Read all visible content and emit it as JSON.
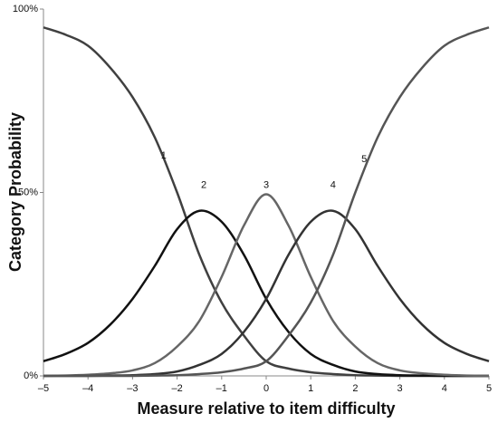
{
  "chart_data": {
    "type": "line",
    "x_label": "Measure relative to item difficulty",
    "y_label": "Category Probability",
    "x": [
      -5,
      -4.5,
      -4,
      -3.5,
      -3,
      -2.5,
      -2,
      -1.5,
      -1,
      -0.5,
      0,
      0.5,
      1,
      1.5,
      2,
      2.5,
      3,
      3.5,
      4,
      4.5,
      5
    ],
    "series": [
      {
        "name": "1",
        "color": "#404040",
        "values": [
          95,
          93,
          90,
          84,
          76,
          65,
          50,
          33,
          20,
          11,
          4,
          2,
          1,
          0.5,
          0.2,
          0.1,
          0,
          0,
          0,
          0,
          0
        ]
      },
      {
        "name": "2",
        "color": "#111111",
        "values": [
          4,
          6,
          9,
          14,
          21,
          30,
          40,
          45,
          42,
          33,
          21,
          12,
          6,
          3,
          1.2,
          0.5,
          0.2,
          0.1,
          0,
          0,
          0
        ]
      },
      {
        "name": "3",
        "color": "#666666",
        "values": [
          0,
          0.1,
          0.3,
          0.7,
          1.5,
          3.5,
          8,
          15,
          27,
          41,
          49.5,
          41,
          27,
          15,
          8,
          3.5,
          1.5,
          0.7,
          0.3,
          0.1,
          0
        ]
      },
      {
        "name": "4",
        "color": "#333333",
        "values": [
          0,
          0,
          0,
          0.1,
          0.2,
          0.5,
          1.2,
          3,
          6,
          12,
          21,
          33,
          42,
          45,
          40,
          30,
          21,
          14,
          9,
          6,
          4
        ]
      },
      {
        "name": "5",
        "color": "#555555",
        "values": [
          0,
          0,
          0,
          0,
          0,
          0.1,
          0.2,
          0.5,
          1,
          2,
          4,
          11,
          20,
          33,
          50,
          65,
          76,
          84,
          90,
          93,
          95
        ]
      }
    ],
    "xlim": [
      -5,
      5
    ],
    "xticks": [
      {
        "value": -5,
        "label": "–5"
      },
      {
        "value": -4,
        "label": "–4"
      },
      {
        "value": -3,
        "label": "–3"
      },
      {
        "value": -2,
        "label": "–2"
      },
      {
        "value": -1,
        "label": "–1"
      },
      0,
      1,
      2,
      3,
      4,
      5
    ],
    "ylim": [
      0,
      100
    ],
    "yticks": [
      {
        "value": 0,
        "label": "0%"
      },
      {
        "value": 50,
        "label": "50%"
      },
      {
        "value": 100,
        "label": "100%"
      }
    ]
  }
}
